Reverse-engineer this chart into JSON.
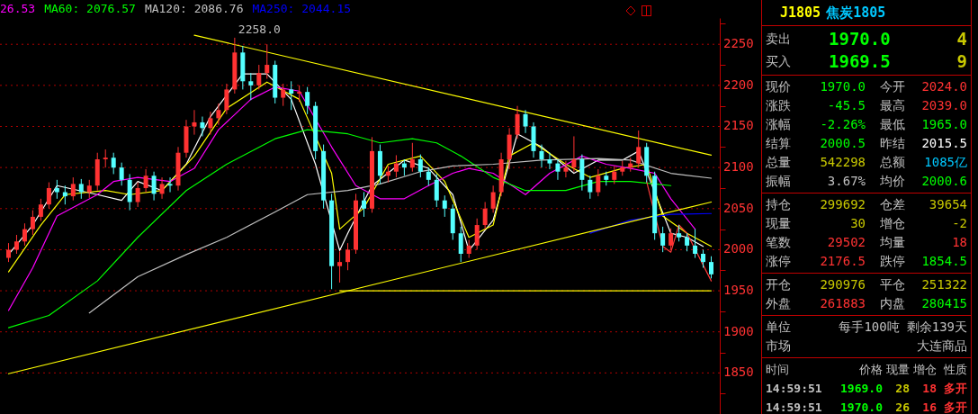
{
  "chart_data": [
    {
      "type": "candlestick",
      "categories": [
        null,
        null,
        null,
        null,
        null,
        null,
        null,
        null,
        null,
        null,
        null,
        null,
        null,
        null,
        null,
        null,
        null,
        null,
        null,
        null,
        null,
        null,
        null,
        null,
        null,
        null,
        null,
        null,
        null,
        null,
        null,
        null,
        null,
        null,
        null,
        null,
        null,
        null,
        null,
        null,
        null,
        null,
        null,
        null,
        null,
        null,
        null,
        null,
        null,
        null,
        null,
        null,
        null,
        null,
        null,
        null,
        null,
        null,
        null,
        null,
        null,
        null,
        null,
        null,
        null,
        null,
        null,
        null,
        null,
        null,
        null,
        null,
        null,
        null,
        null,
        null,
        null,
        null,
        null,
        null,
        null,
        null,
        null,
        null,
        null,
        null,
        null,
        null
      ],
      "ohlc": [
        [
          1990,
          2008,
          1985,
          2000
        ],
        [
          2000,
          2018,
          1995,
          2010
        ],
        [
          2010,
          2032,
          2005,
          2025
        ],
        [
          2025,
          2048,
          2018,
          2040
        ],
        [
          2040,
          2062,
          2035,
          2055
        ],
        [
          2055,
          2082,
          2050,
          2075
        ],
        [
          2075,
          2085,
          2062,
          2070
        ],
        [
          2070,
          2078,
          2055,
          2065
        ],
        [
          2065,
          2088,
          2060,
          2080
        ],
        [
          2080,
          2086,
          2062,
          2070
        ],
        [
          2070,
          2085,
          2063,
          2078
        ],
        [
          2078,
          2118,
          2072,
          2110
        ],
        [
          2110,
          2122,
          2100,
          2112
        ],
        [
          2112,
          2118,
          2092,
          2100
        ],
        [
          2100,
          2106,
          2078,
          2085
        ],
        [
          2085,
          2092,
          2048,
          2058
        ],
        [
          2058,
          2082,
          2052,
          2075
        ],
        [
          2075,
          2098,
          2070,
          2090
        ],
        [
          2090,
          2095,
          2060,
          2068
        ],
        [
          2068,
          2088,
          2062,
          2080
        ],
        [
          2080,
          2088,
          2070,
          2078
        ],
        [
          2078,
          2125,
          2072,
          2118
        ],
        [
          2118,
          2158,
          2112,
          2150
        ],
        [
          2150,
          2170,
          2140,
          2155
        ],
        [
          2155,
          2162,
          2138,
          2148
        ],
        [
          2148,
          2168,
          2140,
          2160
        ],
        [
          2160,
          2178,
          2152,
          2170
        ],
        [
          2170,
          2202,
          2165,
          2195
        ],
        [
          2195,
          2258,
          2190,
          2240
        ],
        [
          2240,
          2248,
          2195,
          2205
        ],
        [
          2205,
          2215,
          2182,
          2200
        ],
        [
          2200,
          2225,
          2195,
          2215
        ],
        [
          2215,
          2250,
          2208,
          2225
        ],
        [
          2225,
          2230,
          2178,
          2185
        ],
        [
          2185,
          2202,
          2175,
          2195
        ],
        [
          2195,
          2205,
          2170,
          2190
        ],
        [
          2190,
          2200,
          2180,
          2192
        ],
        [
          2192,
          2198,
          2165,
          2175
        ],
        [
          2175,
          2180,
          2110,
          2120
        ],
        [
          2120,
          2128,
          2050,
          2060
        ],
        [
          2060,
          2068,
          1952,
          1980
        ],
        [
          1980,
          1998,
          1960,
          1985
        ],
        [
          1985,
          2008,
          1975,
          2000
        ],
        [
          2000,
          2068,
          1995,
          2060
        ],
        [
          2060,
          2070,
          2040,
          2050
        ],
        [
          2050,
          2137,
          2045,
          2120
        ],
        [
          2120,
          2128,
          2080,
          2090
        ],
        [
          2090,
          2102,
          2082,
          2095
        ],
        [
          2095,
          2115,
          2088,
          2105
        ],
        [
          2105,
          2110,
          2090,
          2100
        ],
        [
          2100,
          2130,
          2095,
          2110
        ],
        [
          2110,
          2116,
          2088,
          2095
        ],
        [
          2095,
          2100,
          2078,
          2085
        ],
        [
          2085,
          2092,
          2052,
          2060
        ],
        [
          2060,
          2066,
          2040,
          2050
        ],
        [
          2050,
          2055,
          2012,
          2020
        ],
        [
          2020,
          2028,
          1985,
          1995
        ],
        [
          1995,
          2012,
          1990,
          2005
        ],
        [
          2005,
          2038,
          2000,
          2030
        ],
        [
          2030,
          2058,
          2025,
          2050
        ],
        [
          2050,
          2078,
          2045,
          2070
        ],
        [
          2070,
          2118,
          2065,
          2110
        ],
        [
          2110,
          2148,
          2098,
          2140
        ],
        [
          2140,
          2175,
          2135,
          2165
        ],
        [
          2165,
          2170,
          2142,
          2150
        ],
        [
          2150,
          2155,
          2112,
          2120
        ],
        [
          2120,
          2128,
          2100,
          2110
        ],
        [
          2110,
          2118,
          2098,
          2105
        ],
        [
          2105,
          2110,
          2085,
          2095
        ],
        [
          2095,
          2108,
          2088,
          2100
        ],
        [
          2100,
          2138,
          2095,
          2110
        ],
        [
          2110,
          2116,
          2072,
          2085
        ],
        [
          2085,
          2090,
          2062,
          2070
        ],
        [
          2070,
          2098,
          2065,
          2090
        ],
        [
          2090,
          2095,
          2078,
          2085
        ],
        [
          2085,
          2102,
          2080,
          2095
        ],
        [
          2095,
          2108,
          2090,
          2100
        ],
        [
          2100,
          2112,
          2095,
          2105
        ],
        [
          2105,
          2145,
          2100,
          2125
        ],
        [
          2125,
          2130,
          2082,
          2090
        ],
        [
          2090,
          2095,
          2012,
          2020
        ],
        [
          2020,
          2028,
          1997,
          2005
        ],
        [
          2005,
          2026,
          2000,
          2020
        ],
        [
          2020,
          2030,
          2010,
          2015
        ],
        [
          2015,
          2020,
          1998,
          2005
        ],
        [
          2005,
          2025,
          1990,
          1995
        ],
        [
          1995,
          2000,
          1978,
          1985
        ],
        [
          1985,
          1992,
          1965,
          1970
        ]
      ],
      "colors": [
        "#ff3232",
        "#ff3232",
        "#ff3232",
        "#ff3232",
        "#ff3232",
        "#ff3232",
        "#54ffff",
        "#54ffff",
        "#ff3232",
        "#54ffff",
        "#ff3232",
        "#ff3232",
        "#ff3232",
        "#54ffff",
        "#54ffff",
        "#54ffff",
        "#ff3232",
        "#ff3232",
        "#54ffff",
        "#ff3232",
        "#54ffff",
        "#ff3232",
        "#ff3232",
        "#ff3232",
        "#54ffff",
        "#ff3232",
        "#ff3232",
        "#ff3232",
        "#ff3232",
        "#54ffff",
        "#54ffff",
        "#ff3232",
        "#ff3232",
        "#54ffff",
        "#ff3232",
        "#54ffff",
        "#ff3232",
        "#54ffff",
        "#54ffff",
        "#54ffff",
        "#54ffff",
        "#ff3232",
        "#ff3232",
        "#ff3232",
        "#54ffff",
        "#ff3232",
        "#54ffff",
        "#ff3232",
        "#ff3232",
        "#54ffff",
        "#ff3232",
        "#54ffff",
        "#54ffff",
        "#54ffff",
        "#54ffff",
        "#54ffff",
        "#54ffff",
        "#ff3232",
        "#ff3232",
        "#ff3232",
        "#ff3232",
        "#ff3232",
        "#ff3232",
        "#ff3232",
        "#54ffff",
        "#54ffff",
        "#54ffff",
        "#54ffff",
        "#54ffff",
        "#ff3232",
        "#ff3232",
        "#54ffff",
        "#54ffff",
        "#ff3232",
        "#54ffff",
        "#ff3232",
        "#ff3232",
        "#ff3232",
        "#ff3232",
        "#54ffff",
        "#54ffff",
        "#54ffff",
        "#ff3232",
        "#54ffff",
        "#54ffff",
        "#54ffff",
        "#54ffff",
        "#54ffff"
      ],
      "series": [
        {
          "type": "line",
          "color": "#ffffff",
          "values": [
            1994,
            null,
            null,
            2030,
            null,
            null,
            2078,
            null,
            null,
            null,
            null,
            2067,
            null,
            null,
            2060,
            null,
            2083,
            null,
            null,
            2072,
            null,
            null,
            2104,
            null,
            null,
            2162,
            null,
            null,
            null,
            2214,
            null,
            null,
            2214,
            null,
            null,
            2183,
            null,
            null,
            2104,
            null,
            null,
            1999,
            2020,
            null,
            null,
            2078,
            null,
            null,
            null,
            2109,
            null,
            null,
            2099,
            null,
            null,
            2067,
            null,
            1999,
            null,
            null,
            2036,
            null,
            null,
            2141,
            null,
            null,
            2125,
            null,
            null,
            null,
            2093,
            null,
            null,
            2109,
            null,
            null,
            2109,
            null,
            2120,
            null,
            null,
            null,
            2020,
            null,
            2015,
            null,
            2004,
            null
          ]
        },
        {
          "type": "line",
          "color": "#ffff00",
          "values": [
            1973,
            null,
            null,
            null,
            2030,
            null,
            null,
            2067,
            null,
            null,
            null,
            null,
            2072,
            null,
            null,
            2067,
            null,
            null,
            null,
            2072,
            null,
            null,
            null,
            2114,
            null,
            null,
            null,
            2172,
            null,
            null,
            null,
            null,
            2204,
            null,
            null,
            null,
            2183,
            null,
            null,
            null,
            2093,
            2025,
            null,
            null,
            2051,
            null,
            null,
            2104,
            null,
            null,
            null,
            2114,
            null,
            null,
            2083,
            null,
            null,
            2015,
            null,
            null,
            2030,
            null,
            2114,
            null,
            null,
            2130,
            null,
            null,
            null,
            2104,
            null,
            null,
            2088,
            null,
            null,
            null,
            2099,
            null,
            null,
            2104,
            null,
            2041,
            null,
            null,
            2020,
            null,
            null,
            2004
          ]
        },
        {
          "type": "line",
          "name": "26.53",
          "color": "#ff00ff",
          "values": [
            1926,
            null,
            null,
            1978,
            null,
            null,
            2041,
            null,
            null,
            null,
            null,
            2067,
            null,
            2083,
            null,
            null,
            2088,
            null,
            null,
            null,
            2083,
            null,
            null,
            2099,
            null,
            null,
            2146,
            null,
            null,
            null,
            2183,
            null,
            null,
            2198,
            null,
            null,
            2193,
            null,
            null,
            null,
            2125,
            null,
            null,
            2078,
            null,
            null,
            2062,
            null,
            null,
            2062,
            null,
            null,
            2078,
            null,
            null,
            2093,
            null,
            2099,
            null,
            null,
            2093,
            null,
            null,
            null,
            2067,
            null,
            null,
            2093,
            null,
            null,
            null,
            2114,
            null,
            null,
            2104,
            null,
            null,
            2099,
            null,
            null,
            2093,
            null,
            2062,
            null,
            null,
            2025,
            null,
            null
          ]
        },
        {
          "type": "line",
          "name": "MA60: 2076.57",
          "color": "#00ff00",
          "values": [
            1905,
            null,
            null,
            null,
            null,
            1920,
            null,
            null,
            null,
            null,
            null,
            1962,
            null,
            null,
            null,
            null,
            2015,
            null,
            null,
            null,
            null,
            null,
            2072,
            null,
            null,
            null,
            null,
            2104,
            null,
            null,
            null,
            null,
            null,
            2135,
            null,
            null,
            null,
            2146,
            null,
            null,
            null,
            null,
            2141,
            null,
            null,
            null,
            2130,
            null,
            null,
            null,
            2135,
            null,
            null,
            2130,
            null,
            null,
            2114,
            null,
            null,
            null,
            2088,
            null,
            null,
            null,
            2072,
            null,
            null,
            null,
            null,
            2072,
            null,
            null,
            null,
            2083,
            null,
            null,
            null,
            2083,
            null,
            null,
            null,
            null,
            2078,
            null,
            null,
            null,
            null,
            null
          ]
        },
        {
          "type": "line",
          "name": "MA120: 2086.76",
          "color": "#c0c0c0",
          "values": [
            null,
            null,
            null,
            null,
            null,
            null,
            null,
            null,
            null,
            null,
            1923,
            null,
            null,
            null,
            null,
            null,
            1967,
            null,
            null,
            null,
            null,
            null,
            1994,
            null,
            null,
            null,
            null,
            2015,
            null,
            null,
            null,
            null,
            null,
            2046,
            null,
            null,
            null,
            2067,
            null,
            null,
            null,
            null,
            2072,
            null,
            null,
            null,
            2080,
            null,
            null,
            null,
            null,
            2095,
            null,
            null,
            null,
            2102,
            null,
            null,
            null,
            null,
            2104,
            null,
            null,
            null,
            null,
            null,
            2109,
            null,
            null,
            null,
            null,
            null,
            null,
            2111,
            null,
            null,
            null,
            2109,
            null,
            null,
            null,
            null,
            2093,
            null,
            null,
            null,
            null,
            2087
          ]
        },
        {
          "type": "line",
          "name": "MA250: 2044.15",
          "color": "#0000ff",
          "values": [
            null,
            null,
            null,
            null,
            null,
            null,
            null,
            null,
            null,
            null,
            null,
            null,
            null,
            null,
            null,
            null,
            null,
            null,
            null,
            null,
            null,
            null,
            null,
            null,
            null,
            null,
            null,
            null,
            null,
            null,
            null,
            null,
            null,
            null,
            null,
            null,
            null,
            null,
            null,
            null,
            null,
            null,
            null,
            null,
            null,
            null,
            null,
            null,
            null,
            null,
            null,
            null,
            null,
            null,
            null,
            null,
            null,
            null,
            null,
            null,
            null,
            null,
            null,
            null,
            null,
            null,
            null,
            null,
            null,
            null,
            null,
            null,
            2020,
            null,
            null,
            null,
            null,
            2036,
            null,
            null,
            null,
            null,
            2043,
            null,
            null,
            null,
            null,
            2044
          ]
        },
        {
          "type": "line",
          "color": "#ffff00",
          "values": [
            null,
            null,
            null,
            null,
            null,
            null,
            null,
            null,
            null,
            null,
            null,
            null,
            null,
            null,
            null,
            null,
            null,
            null,
            null,
            null,
            null,
            null,
            null,
            2261,
            null,
            null,
            null,
            null,
            null,
            null,
            null,
            null,
            null,
            null,
            null,
            null,
            null,
            null,
            null,
            null,
            null,
            null,
            null,
            null,
            null,
            null,
            null,
            null,
            null,
            null,
            null,
            null,
            null,
            null,
            null,
            null,
            null,
            null,
            null,
            null,
            null,
            null,
            null,
            null,
            null,
            null,
            null,
            null,
            null,
            null,
            null,
            null,
            null,
            null,
            null,
            null,
            null,
            null,
            null,
            null,
            null,
            null,
            null,
            null,
            null,
            null,
            null,
            2115
          ]
        },
        {
          "type": "line",
          "color": "#ffff00",
          "values": [
            1849,
            null,
            null,
            null,
            null,
            null,
            null,
            null,
            null,
            null,
            null,
            null,
            null,
            null,
            null,
            null,
            null,
            null,
            null,
            null,
            null,
            null,
            null,
            null,
            null,
            null,
            null,
            null,
            null,
            null,
            null,
            null,
            null,
            null,
            null,
            null,
            null,
            null,
            null,
            null,
            null,
            null,
            null,
            null,
            null,
            null,
            null,
            null,
            null,
            null,
            null,
            null,
            null,
            null,
            null,
            null,
            null,
            null,
            null,
            null,
            null,
            null,
            null,
            null,
            null,
            null,
            null,
            null,
            null,
            null,
            null,
            null,
            null,
            null,
            null,
            null,
            null,
            null,
            null,
            null,
            null,
            null,
            null,
            null,
            null,
            null,
            null,
            2058
          ]
        },
        {
          "type": "line",
          "color": "#ffff00",
          "values": [
            null,
            null,
            null,
            null,
            null,
            null,
            null,
            null,
            null,
            null,
            null,
            null,
            null,
            null,
            null,
            null,
            null,
            null,
            null,
            null,
            null,
            null,
            null,
            null,
            null,
            null,
            null,
            null,
            null,
            null,
            null,
            null,
            null,
            null,
            null,
            null,
            null,
            null,
            null,
            null,
            null,
            1950,
            null,
            null,
            null,
            null,
            null,
            null,
            null,
            null,
            null,
            null,
            null,
            null,
            null,
            null,
            null,
            null,
            null,
            null,
            null,
            null,
            null,
            null,
            null,
            null,
            null,
            null,
            null,
            null,
            null,
            null,
            null,
            null,
            null,
            null,
            null,
            null,
            null,
            null,
            null,
            null,
            null,
            null,
            null,
            null,
            null,
            1950
          ]
        },
        {
          "type": "line",
          "color": "#ff3a3a",
          "values": [
            null,
            null,
            null,
            null,
            null,
            null,
            null,
            null,
            null,
            null,
            null,
            null,
            null,
            null,
            null,
            null,
            null,
            null,
            null,
            null,
            null,
            null,
            null,
            null,
            null,
            null,
            null,
            null,
            null,
            null,
            null,
            null,
            null,
            null,
            null,
            null,
            null,
            null,
            null,
            null,
            null,
            null,
            null,
            null,
            null,
            null,
            null,
            null,
            null,
            null,
            null,
            null,
            null,
            null,
            null,
            null,
            null,
            null,
            null,
            null,
            null,
            null,
            null,
            null,
            null,
            null,
            null,
            null,
            null,
            null,
            null,
            null,
            null,
            null,
            null,
            null,
            null,
            null,
            null,
            2083,
            null,
            2004,
            1997,
            2030,
            2020,
            null,
            null,
            1962
          ]
        }
      ],
      "annotations": [
        "2258.0"
      ],
      "ylim": [
        1800,
        2282
      ],
      "yticks": [
        {
          "value": 1825,
          "label": null
        },
        1850,
        {
          "value": 1875,
          "label": null
        },
        1900,
        {
          "value": 1925,
          "label": null
        },
        1950,
        {
          "value": 1975,
          "label": null
        },
        2000,
        {
          "value": 2025,
          "label": null
        },
        2050,
        {
          "value": 2075,
          "label": null
        },
        2100,
        {
          "value": 2125,
          "label": null
        },
        2150,
        {
          "value": 2175,
          "label": null
        },
        2200,
        {
          "value": 2225,
          "label": null
        },
        2250,
        {
          "value": 2275,
          "label": null
        }
      ],
      "grid": "y",
      "tick_labels": "y"
    },
    {
      "type": "other",
      "title": "J1805",
      "subtitle": "焦炭1805",
      "annotations": [
        "卖出",
        "1970.0",
        "4",
        "买入",
        "1969.5",
        "9",
        "现价",
        "1970.0",
        "今开",
        "2024.0",
        "涨跌",
        "-45.5",
        "最高",
        "2039.0",
        "涨幅",
        "-2.26%",
        "最低",
        "1965.0",
        "结算",
        "2000.5",
        "昨结",
        "2015.5",
        "总量",
        "542298",
        "总额",
        "1085亿",
        "振幅",
        "3.67%",
        "均价",
        "2000.6",
        "持仓",
        "299692",
        "仓差",
        "39654",
        "现量",
        "30",
        "增仓",
        "-2",
        "笔数",
        "29502",
        "均量",
        "18",
        "涨停",
        "2176.5",
        "跌停",
        "1854.5",
        "开仓",
        "290976",
        "平仓",
        "251322",
        "外盘",
        "261883",
        "内盘",
        "280415",
        "单位",
        "每手100吨",
        "剩余139天",
        "市场",
        "大连商品",
        "时间",
        "价格",
        "现量",
        "增仓",
        "性质",
        "14:59:51",
        "1969.0",
        "28",
        "18",
        "多开",
        "14:59:51",
        "1970.0",
        "26",
        "16",
        "多开"
      ]
    }
  ]
}
